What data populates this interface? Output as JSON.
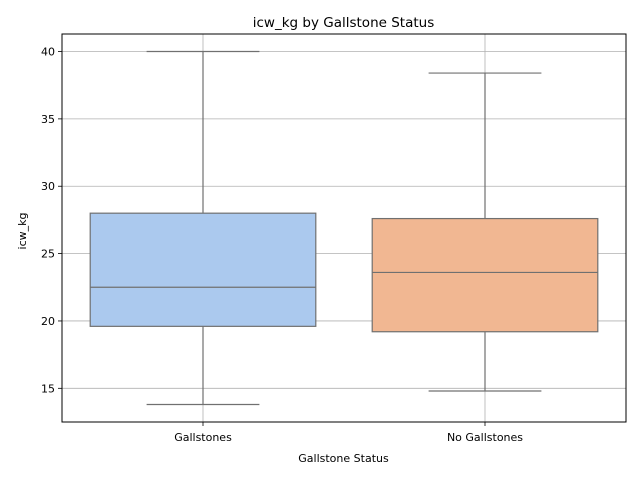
{
  "chart_data": {
    "type": "boxplot",
    "title": "icw_kg by Gallstone Status",
    "xlabel": "Gallstone Status",
    "ylabel": "icw_kg",
    "categories": [
      "Gallstones",
      "No Gallstones"
    ],
    "ylim": [
      12.5,
      41.3
    ],
    "yticks": [
      15,
      20,
      25,
      30,
      35,
      40
    ],
    "grid": true,
    "boxes": [
      {
        "category": "Gallstones",
        "whisker_low": 13.8,
        "q1": 19.6,
        "median": 22.5,
        "q3": 28.0,
        "whisker_high": 40.0,
        "color": "#abc9ee"
      },
      {
        "category": "No Gallstones",
        "whisker_low": 14.8,
        "q1": 19.2,
        "median": 23.6,
        "q3": 27.6,
        "whisker_high": 38.4,
        "color": "#f1b792"
      }
    ],
    "line_color": "#707070",
    "grid_color": "#b0b0b0"
  }
}
